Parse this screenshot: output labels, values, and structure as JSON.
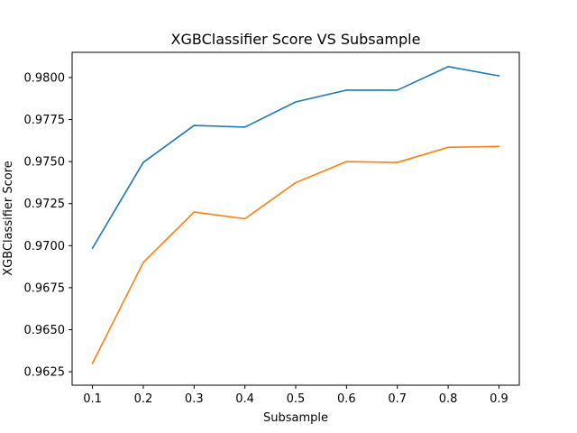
{
  "chart_data": {
    "type": "line",
    "title": "XGBClassifier Score VS Subsample",
    "xlabel": "Subsample",
    "ylabel": "XGBClassifier Score",
    "x": [
      0.1,
      0.2,
      0.3,
      0.4,
      0.5,
      0.6,
      0.7,
      0.8,
      0.9
    ],
    "xticks": [
      "0.1",
      "0.2",
      "0.3",
      "0.4",
      "0.5",
      "0.6",
      "0.7",
      "0.8",
      "0.9"
    ],
    "yticks": [
      "0.9625",
      "0.9650",
      "0.9675",
      "0.9700",
      "0.9725",
      "0.9750",
      "0.9775",
      "0.9800"
    ],
    "ytick_values": [
      0.9625,
      0.965,
      0.9675,
      0.97,
      0.9725,
      0.975,
      0.9775,
      0.98
    ],
    "xlim": [
      0.06,
      0.94
    ],
    "ylim": [
      0.9617,
      0.9815
    ],
    "grid": false,
    "legend": "none",
    "series": [
      {
        "color": "#1f77b4",
        "values": [
          0.96985,
          0.97495,
          0.97715,
          0.97705,
          0.97855,
          0.97925,
          0.97925,
          0.98065,
          0.9801
        ]
      },
      {
        "color": "#ff7f0e",
        "values": [
          0.963,
          0.969,
          0.972,
          0.9716,
          0.97375,
          0.975,
          0.97495,
          0.97585,
          0.9759
        ]
      }
    ]
  }
}
